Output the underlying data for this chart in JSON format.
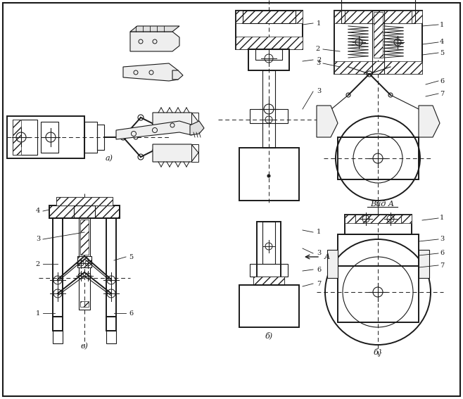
{
  "background_color": "#ffffff",
  "line_color": "#1a1a1a",
  "label_a": "а)",
  "label_b": "б)",
  "label_v": "в)",
  "label_vid_a": "Вид А",
  "fig_width": 6.58,
  "fig_height": 5.67,
  "dpi": 100
}
